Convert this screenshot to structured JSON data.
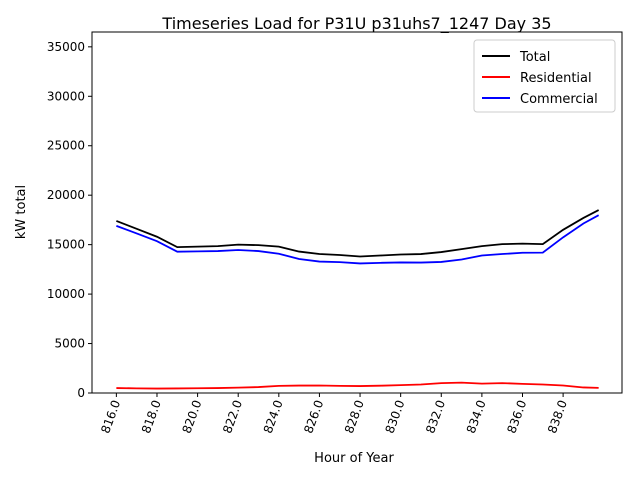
{
  "chart_data": {
    "type": "line",
    "title": "Timeseries Load for P31U p31uhs7_1247  Day 35",
    "xlabel": "Hour of Year",
    "ylabel": "kW total",
    "xlim": [
      814.8,
      840.9
    ],
    "ylim": [
      0,
      36500
    ],
    "xticks": [
      "816.0",
      "818.0",
      "820.0",
      "822.0",
      "824.0",
      "826.0",
      "828.0",
      "830.0",
      "832.0",
      "834.0",
      "836.0",
      "838.0"
    ],
    "xtick_values": [
      816,
      818,
      820,
      822,
      824,
      826,
      828,
      830,
      832,
      834,
      836,
      838
    ],
    "yticks": [
      0,
      5000,
      10000,
      15000,
      20000,
      25000,
      30000,
      35000
    ],
    "legend_position": "top-right",
    "x": [
      816,
      817,
      818,
      819,
      820,
      821,
      822,
      823,
      824,
      825,
      826,
      827,
      828,
      829,
      830,
      831,
      832,
      833,
      834,
      835,
      836,
      837,
      838,
      839,
      839.75
    ],
    "series": [
      {
        "name": "Total",
        "color": "#000000",
        "values": [
          17400,
          16600,
          15800,
          14750,
          14800,
          14850,
          15000,
          14950,
          14800,
          14300,
          14050,
          13950,
          13800,
          13900,
          14000,
          14050,
          14250,
          14550,
          14850,
          15050,
          15100,
          15050,
          16500,
          17700,
          18500
        ]
      },
      {
        "name": "Residential",
        "color": "#ff0000",
        "values": [
          500,
          470,
          450,
          460,
          480,
          500,
          540,
          600,
          720,
          750,
          760,
          720,
          700,
          740,
          800,
          860,
          1000,
          1050,
          950,
          1000,
          920,
          860,
          760,
          560,
          520
        ]
      },
      {
        "name": "Commercial",
        "color": "#0000ff",
        "values": [
          16900,
          16130,
          15350,
          14290,
          14320,
          14350,
          14460,
          14350,
          14080,
          13550,
          13290,
          13230,
          13100,
          13160,
          13200,
          13190,
          13250,
          13500,
          13900,
          14050,
          14180,
          14190,
          15740,
          17140,
          17980
        ]
      }
    ]
  }
}
